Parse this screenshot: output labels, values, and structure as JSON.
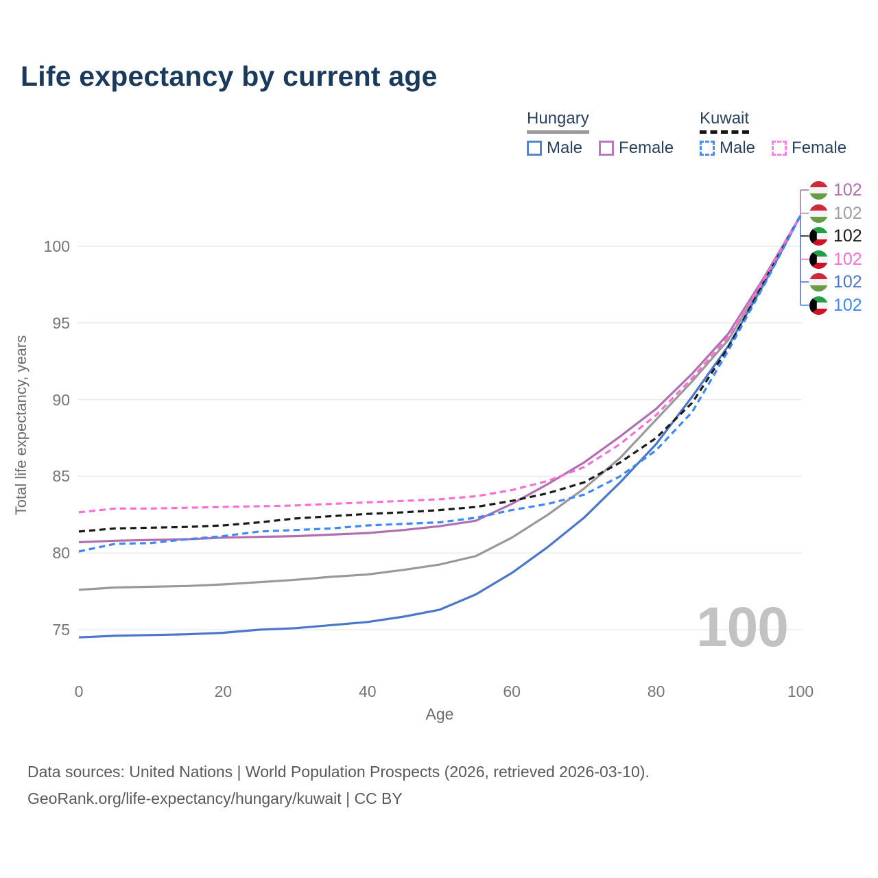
{
  "title": "Life expectancy by current age",
  "legend": {
    "groups": [
      {
        "name": "Hungary",
        "line": {
          "style": "solid",
          "color": "#9a9a9a"
        },
        "items": [
          {
            "label": "Male",
            "color": "#5585c8",
            "dashed": false
          },
          {
            "label": "Female",
            "color": "#b878bc",
            "dashed": false
          }
        ]
      },
      {
        "name": "Kuwait",
        "line": {
          "style": "dashed",
          "color": "#151515"
        },
        "items": [
          {
            "label": "Male",
            "color": "#4a8cf7",
            "dashed": true
          },
          {
            "label": "Female",
            "color": "#fb80ea",
            "dashed": true
          }
        ]
      }
    ]
  },
  "watermark": "100",
  "footer": {
    "line1": "Data sources: United Nations | World Population Prospects (2026, retrieved 2026-03-10).",
    "line2": "GeoRank.org/life-expectancy/hungary/kuwait | CC BY"
  },
  "chart_data": {
    "type": "line",
    "title": "Life expectancy by current age",
    "xlabel": "Age",
    "ylabel": "Total life expectancy, years",
    "xlim": [
      0,
      100
    ],
    "ylim": [
      73.5,
      103
    ],
    "x_ticks": [
      0,
      20,
      40,
      60,
      80,
      100
    ],
    "y_ticks": [
      75,
      80,
      85,
      90,
      95,
      100
    ],
    "grid": "horizontal",
    "grid_color": "#ebebeb",
    "legend_position": "top-right",
    "x": [
      0,
      5,
      10,
      15,
      20,
      25,
      30,
      35,
      40,
      45,
      50,
      55,
      60,
      65,
      70,
      75,
      80,
      85,
      90,
      95,
      100
    ],
    "series": [
      {
        "name": "Hungary — Female",
        "country": "Hungary",
        "sex": "Female",
        "color": "#b06fb0",
        "dash": false,
        "z": 3,
        "values": [
          80.7,
          80.8,
          80.85,
          80.9,
          81.0,
          81.05,
          81.1,
          81.2,
          81.3,
          81.5,
          81.75,
          82.1,
          83.2,
          84.5,
          85.9,
          87.6,
          89.4,
          91.7,
          94.3,
          98.0,
          102
        ]
      },
      {
        "name": "Hungary",
        "country": "Hungary",
        "sex": "Both",
        "color": "#999999",
        "dash": false,
        "z": 2,
        "values": [
          77.6,
          77.75,
          77.8,
          77.85,
          77.95,
          78.1,
          78.25,
          78.45,
          78.6,
          78.9,
          79.25,
          79.8,
          81.0,
          82.5,
          84.2,
          86.2,
          88.7,
          91.2,
          93.9,
          97.8,
          102
        ]
      },
      {
        "name": "Kuwait",
        "country": "Kuwait",
        "sex": "Both",
        "color": "#1a1a1a",
        "dash": true,
        "z": 4,
        "values": [
          81.4,
          81.6,
          81.65,
          81.7,
          81.8,
          82.0,
          82.25,
          82.4,
          82.55,
          82.65,
          82.8,
          83.0,
          83.4,
          83.9,
          84.6,
          85.9,
          87.5,
          89.8,
          93.4,
          97.7,
          102
        ]
      },
      {
        "name": "Kuwait — Female",
        "country": "Kuwait",
        "sex": "Female",
        "color": "#f56fd5",
        "dash": true,
        "z": 5,
        "values": [
          82.65,
          82.9,
          82.9,
          82.95,
          83.0,
          83.05,
          83.1,
          83.2,
          83.3,
          83.4,
          83.5,
          83.7,
          84.1,
          84.7,
          85.6,
          87.1,
          89.0,
          91.4,
          94.1,
          97.9,
          102
        ]
      },
      {
        "name": "Hungary — Male",
        "country": "Hungary",
        "sex": "Male",
        "color": "#4a77c9",
        "dash": false,
        "z": 1,
        "values": [
          74.5,
          74.6,
          74.65,
          74.7,
          74.8,
          75.0,
          75.1,
          75.3,
          75.5,
          75.85,
          76.3,
          77.3,
          78.7,
          80.4,
          82.3,
          84.6,
          87.1,
          90.2,
          93.5,
          97.6,
          102
        ]
      },
      {
        "name": "Kuwait — Male",
        "country": "Kuwait",
        "sex": "Male",
        "color": "#3f87f5",
        "dash": true,
        "z": 6,
        "values": [
          80.1,
          80.6,
          80.65,
          80.9,
          81.1,
          81.4,
          81.5,
          81.6,
          81.8,
          81.9,
          82.0,
          82.3,
          82.8,
          83.2,
          83.8,
          85.0,
          86.7,
          89.2,
          93.2,
          97.5,
          102
        ]
      }
    ],
    "right_labels": [
      {
        "flag": "hungary",
        "series": "Hungary — Female",
        "value": "102",
        "color": "#b06fb0"
      },
      {
        "flag": "hungary",
        "series": "Hungary",
        "value": "102",
        "color": "#a0a0a0"
      },
      {
        "flag": "kuwait",
        "series": "Kuwait",
        "value": "102",
        "color": "#1a1a1a"
      },
      {
        "flag": "kuwait",
        "series": "Kuwait — Female",
        "value": "102",
        "color": "#f56fd5"
      },
      {
        "flag": "hungary",
        "series": "Hungary — Male",
        "value": "102",
        "color": "#4a77c9"
      },
      {
        "flag": "kuwait",
        "series": "Kuwait — Male",
        "value": "102",
        "color": "#3f87f5"
      }
    ]
  }
}
